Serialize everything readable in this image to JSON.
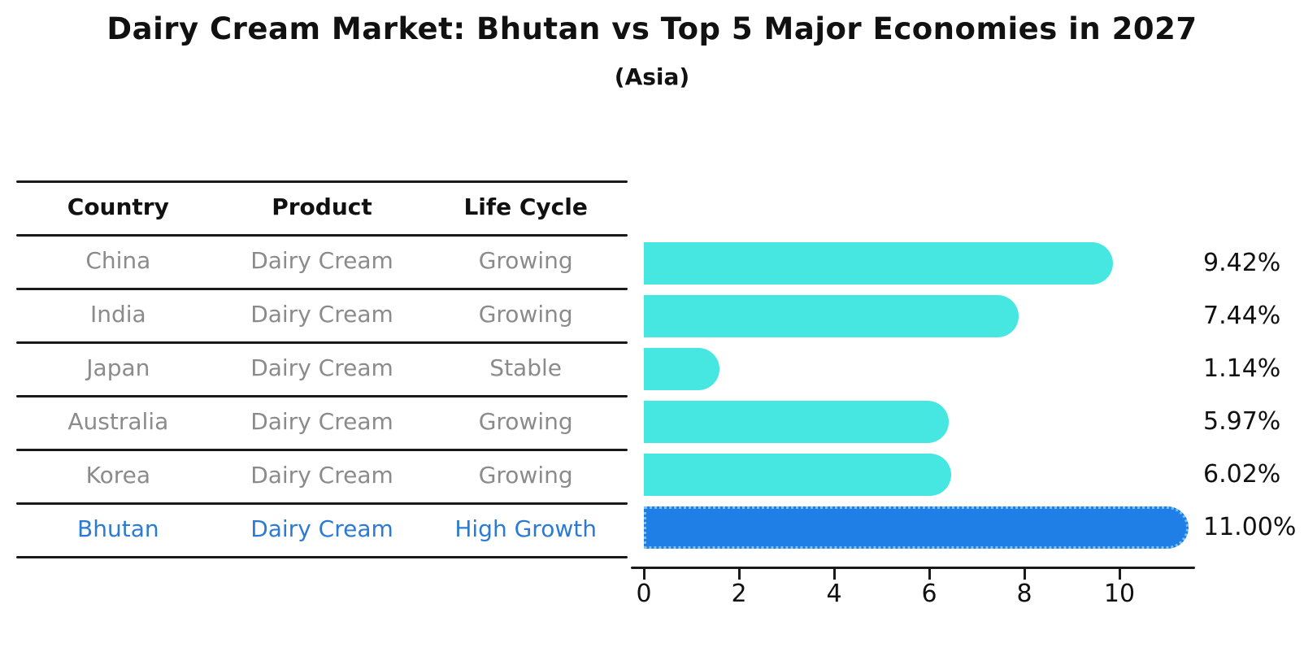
{
  "title": "Dairy Cream Market: Bhutan vs Top 5 Major Economies in 2027",
  "subtitle": "(Asia)",
  "table": {
    "headers": [
      "Country",
      "Product",
      "Life Cycle"
    ],
    "col_names": [
      "country",
      "product",
      "life-cycle"
    ],
    "rows": [
      {
        "cells": [
          "China",
          "Dairy Cream",
          "Growing"
        ],
        "highlight": false
      },
      {
        "cells": [
          "India",
          "Dairy Cream",
          "Growing"
        ],
        "highlight": false
      },
      {
        "cells": [
          "Japan",
          "Dairy Cream",
          "Stable"
        ],
        "highlight": false
      },
      {
        "cells": [
          "Australia",
          "Dairy Cream",
          "Growing"
        ],
        "highlight": false
      },
      {
        "cells": [
          "Korea",
          "Dairy Cream",
          "Growing"
        ],
        "highlight": false
      },
      {
        "cells": [
          "Bhutan",
          "Dairy Cream",
          "High Growth"
        ],
        "highlight": true
      }
    ]
  },
  "chart_data": {
    "type": "bar",
    "orientation": "horizontal",
    "title": "Dairy Cream Market: Bhutan vs Top 5 Major Economies in 2027",
    "subtitle": "(Asia)",
    "categories": [
      "China",
      "India",
      "Japan",
      "Australia",
      "Korea",
      "Bhutan"
    ],
    "values": [
      9.42,
      7.44,
      1.14,
      5.97,
      6.02,
      11.0
    ],
    "value_labels": [
      "9.42%",
      "7.44%",
      "1.14%",
      "5.97%",
      "6.02%",
      "11.00%"
    ],
    "highlight_index": 5,
    "x_ticks": [
      0,
      2,
      4,
      6,
      8,
      10
    ],
    "x_tick_labels": [
      "0",
      "2",
      "4",
      "6",
      "8",
      "10"
    ],
    "xlim": [
      0,
      11.6
    ],
    "grid": false,
    "legend": "none",
    "xlabel": "",
    "ylabel": ""
  },
  "colors": {
    "bar_default": "#46e6e1",
    "bar_highlight": "#1f7fe6",
    "bar_highlight_border": "#7ec2f5",
    "highlight_text": "#2b7bd4",
    "cell_text": "#8b8b8b",
    "header_text": "#111111",
    "line": "#1a1a1a"
  }
}
